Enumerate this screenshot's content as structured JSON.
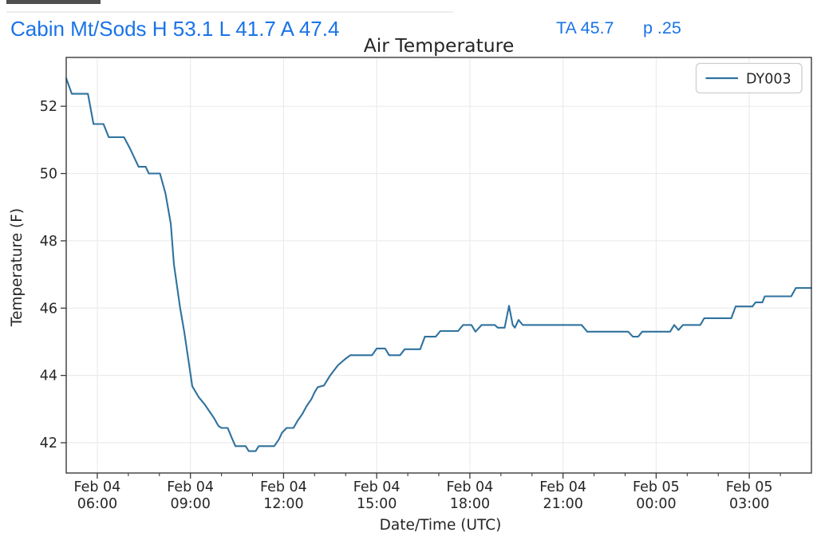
{
  "header": {
    "left_summary": "Cabin Mt/Sods H 53.1 L 41.7 A 47.4",
    "ta_label": "TA 45.7",
    "p_label": "p .25",
    "text_color": "#1a73e8"
  },
  "chart_data": {
    "type": "line",
    "title": "Air Temperature",
    "xlabel": "Date/Time (UTC)",
    "ylabel": "Temperature (F)",
    "grid": true,
    "legend": {
      "position": "upper right",
      "entries": [
        "DY003"
      ]
    },
    "colors": {
      "line": "#2f729e",
      "axis": "#3a3a3a",
      "grid": "#ebebeb",
      "text": "#262626",
      "legend_border": "#cdcdcd"
    },
    "x_range_utc": [
      "Feb 04 05:00",
      "Feb 05 05:00"
    ],
    "x_minor_tick_every_hours": 1,
    "x_ticks": [
      {
        "hour": 1,
        "line1": "Feb 04",
        "line2": "06:00"
      },
      {
        "hour": 4,
        "line1": "Feb 04",
        "line2": "09:00"
      },
      {
        "hour": 7,
        "line1": "Feb 04",
        "line2": "12:00"
      },
      {
        "hour": 10,
        "line1": "Feb 04",
        "line2": "15:00"
      },
      {
        "hour": 13,
        "line1": "Feb 04",
        "line2": "18:00"
      },
      {
        "hour": 16,
        "line1": "Feb 04",
        "line2": "21:00"
      },
      {
        "hour": 19,
        "line1": "Feb 05",
        "line2": "00:00"
      },
      {
        "hour": 22,
        "line1": "Feb 05",
        "line2": "03:00"
      }
    ],
    "y_ticks": [
      42,
      44,
      46,
      48,
      50,
      52
    ],
    "y_range": [
      41.1,
      53.45
    ],
    "series": [
      {
        "name": "DY003",
        "points_hour_degF": [
          [
            0,
            52.83
          ],
          [
            0.18,
            52.37
          ],
          [
            0.7,
            52.37
          ],
          [
            0.88,
            51.47
          ],
          [
            1.2,
            51.47
          ],
          [
            1.37,
            51.08
          ],
          [
            1.86,
            51.08
          ],
          [
            2.05,
            50.75
          ],
          [
            2.33,
            50.2
          ],
          [
            2.56,
            50.2
          ],
          [
            2.66,
            50.0
          ],
          [
            3.02,
            50.0
          ],
          [
            3.2,
            49.4
          ],
          [
            3.37,
            48.5
          ],
          [
            3.47,
            47.3
          ],
          [
            3.67,
            46.0
          ],
          [
            3.8,
            45.3
          ],
          [
            3.93,
            44.5
          ],
          [
            4.06,
            43.68
          ],
          [
            4.27,
            43.35
          ],
          [
            4.45,
            43.15
          ],
          [
            4.6,
            42.95
          ],
          [
            4.77,
            42.72
          ],
          [
            4.9,
            42.5
          ],
          [
            5.0,
            42.44
          ],
          [
            5.2,
            42.44
          ],
          [
            5.33,
            42.15
          ],
          [
            5.45,
            41.9
          ],
          [
            5.78,
            41.9
          ],
          [
            5.88,
            41.75
          ],
          [
            6.1,
            41.75
          ],
          [
            6.2,
            41.9
          ],
          [
            6.7,
            41.9
          ],
          [
            6.85,
            42.1
          ],
          [
            6.95,
            42.3
          ],
          [
            7.1,
            42.44
          ],
          [
            7.32,
            42.44
          ],
          [
            7.45,
            42.65
          ],
          [
            7.6,
            42.85
          ],
          [
            7.75,
            43.1
          ],
          [
            7.9,
            43.3
          ],
          [
            8.0,
            43.5
          ],
          [
            8.1,
            43.65
          ],
          [
            8.3,
            43.7
          ],
          [
            8.5,
            44.0
          ],
          [
            8.75,
            44.3
          ],
          [
            9.0,
            44.5
          ],
          [
            9.15,
            44.6
          ],
          [
            9.85,
            44.6
          ],
          [
            10.0,
            44.8
          ],
          [
            10.27,
            44.8
          ],
          [
            10.4,
            44.6
          ],
          [
            10.75,
            44.6
          ],
          [
            10.9,
            44.78
          ],
          [
            11.4,
            44.78
          ],
          [
            11.55,
            45.15
          ],
          [
            11.9,
            45.15
          ],
          [
            12.05,
            45.32
          ],
          [
            12.62,
            45.32
          ],
          [
            12.78,
            45.5
          ],
          [
            13.05,
            45.5
          ],
          [
            13.18,
            45.3
          ],
          [
            13.38,
            45.5
          ],
          [
            13.8,
            45.5
          ],
          [
            13.9,
            45.42
          ],
          [
            14.12,
            45.42
          ],
          [
            14.26,
            46.07
          ],
          [
            14.38,
            45.5
          ],
          [
            14.45,
            45.42
          ],
          [
            14.57,
            45.65
          ],
          [
            14.7,
            45.5
          ],
          [
            16.6,
            45.5
          ],
          [
            16.78,
            45.3
          ],
          [
            18.1,
            45.3
          ],
          [
            18.25,
            45.15
          ],
          [
            18.42,
            45.15
          ],
          [
            18.55,
            45.3
          ],
          [
            19.45,
            45.3
          ],
          [
            19.58,
            45.5
          ],
          [
            19.72,
            45.35
          ],
          [
            19.86,
            45.5
          ],
          [
            20.42,
            45.5
          ],
          [
            20.55,
            45.7
          ],
          [
            21.42,
            45.7
          ],
          [
            21.56,
            46.05
          ],
          [
            22.1,
            46.05
          ],
          [
            22.2,
            46.17
          ],
          [
            22.42,
            46.17
          ],
          [
            22.5,
            46.35
          ],
          [
            23.35,
            46.35
          ],
          [
            23.5,
            46.6
          ],
          [
            24,
            46.6
          ]
        ]
      }
    ]
  }
}
